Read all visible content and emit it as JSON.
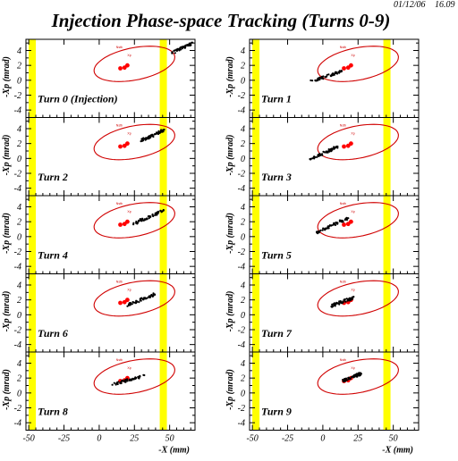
{
  "header": {
    "title": "Injection Phase-space Tracking (Turns 0-9)",
    "date": "01/12/06",
    "time": "16.09"
  },
  "colors": {
    "ellipse": "#d00000",
    "beam": "#000000",
    "stored_core": "#ff0000",
    "septum": "#ffff00",
    "frame": "#000000"
  },
  "chart_data": {
    "type": "scatter",
    "layout": "5x2 small multiples",
    "xlabel": "-X (mm)",
    "ylabel": "-Xp (mrad)",
    "xlim": [
      -52,
      68
    ],
    "ylim": [
      -5,
      5.5
    ],
    "xticks": [
      -50,
      -25,
      0,
      25,
      50
    ],
    "yticks": [
      -4,
      -2,
      0,
      2,
      4
    ],
    "grid": false,
    "septum_bands_x": [
      -47.5,
      45.5
    ],
    "acceptance_ellipse": {
      "center": [
        25,
        2.2
      ],
      "semi_major_mm": 30,
      "semi_minor_mrad": 2.1,
      "tilt_deg": 21
    },
    "stored_beam_core": {
      "x": [
        15,
        18,
        20
      ],
      "y": [
        1.6,
        1.7,
        2.0
      ]
    },
    "ellipse_marks": [
      "Nstb",
      "Xp"
    ],
    "panels": [
      {
        "label": "Turn 0 (Injection)",
        "beam": {
          "x_start": 52,
          "y_start": 3.7,
          "x_end": 66,
          "y_end": 5.0
        }
      },
      {
        "label": "Turn 1",
        "beam": {
          "x_start": -8,
          "y_start": -0.2,
          "x_end": 13,
          "y_end": 1.2
        }
      },
      {
        "label": "Turn 2",
        "beam": {
          "x_start": 30,
          "y_start": 2.4,
          "x_end": 46,
          "y_end": 3.8
        }
      },
      {
        "label": "Turn 3",
        "beam": {
          "x_start": -9,
          "y_start": -0.1,
          "x_end": 10,
          "y_end": 1.5
        }
      },
      {
        "label": "Turn 4",
        "beam": {
          "x_start": 25,
          "y_start": 1.8,
          "x_end": 47,
          "y_end": 3.6
        }
      },
      {
        "label": "Turn 5",
        "beam": {
          "x_start": -5,
          "y_start": 0.5,
          "x_end": 18,
          "y_end": 2.5
        }
      },
      {
        "label": "Turn 6",
        "beam": {
          "x_start": 20,
          "y_start": 1.3,
          "x_end": 40,
          "y_end": 2.8
        }
      },
      {
        "label": "Turn 7",
        "beam": {
          "x_start": 6,
          "y_start": 1.2,
          "x_end": 22,
          "y_end": 2.3
        }
      },
      {
        "label": "Turn 8",
        "beam": {
          "x_start": 10,
          "y_start": 1.2,
          "x_end": 32,
          "y_end": 2.3
        }
      },
      {
        "label": "Turn 9",
        "beam": {
          "x_start": 14,
          "y_start": 1.6,
          "x_end": 27,
          "y_end": 2.6
        }
      }
    ]
  }
}
